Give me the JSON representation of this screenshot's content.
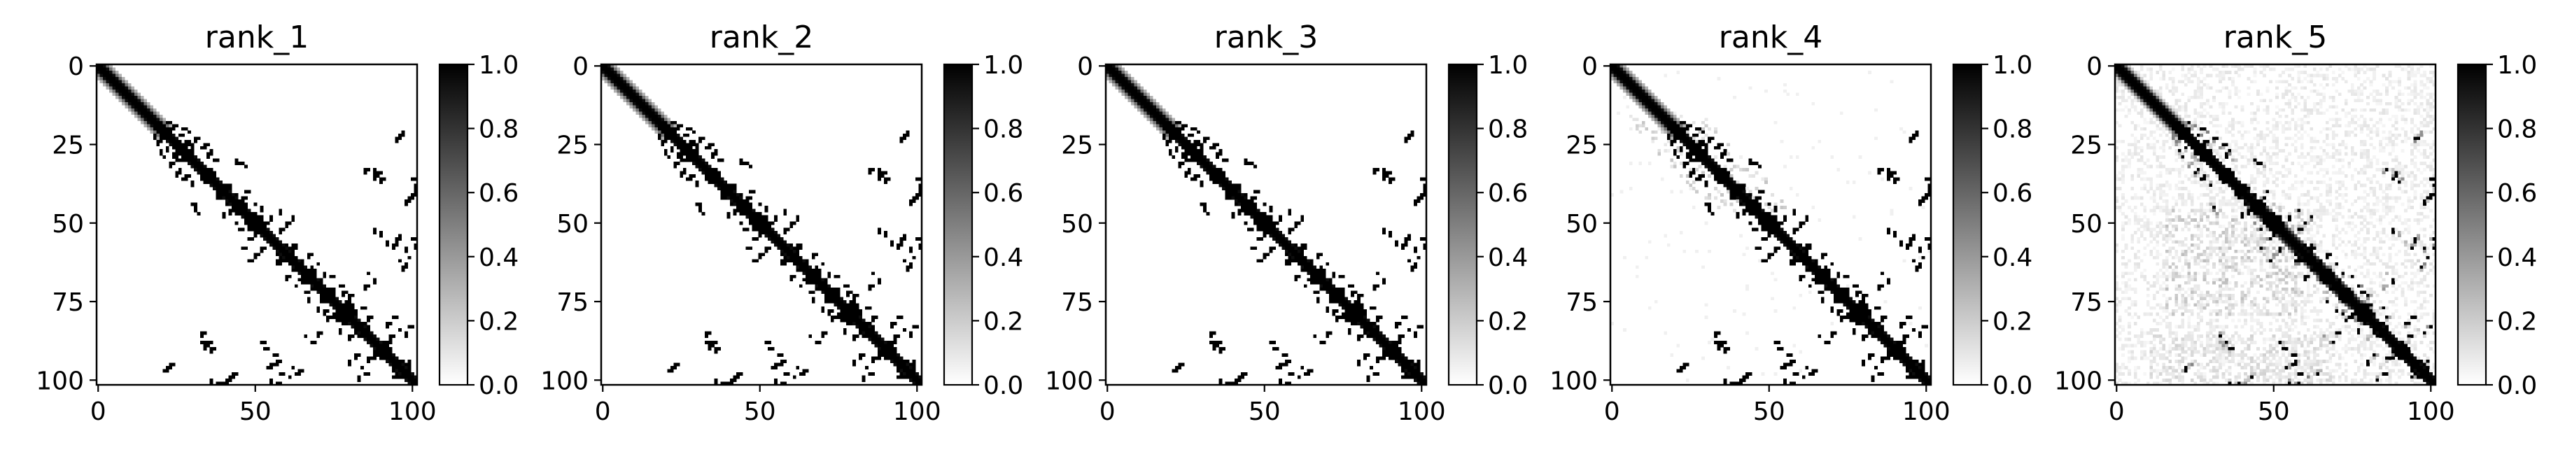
{
  "chart_data": [
    {
      "type": "heatmap",
      "title": "rank_1",
      "variant": 1,
      "xticks": [
        "0",
        "50",
        "100"
      ],
      "yticks": [
        "0",
        "25",
        "50",
        "75",
        "100"
      ],
      "colorbar_ticks": [
        "0.0",
        "0.2",
        "0.4",
        "0.6",
        "0.8",
        "1.0"
      ],
      "colormap": "gray_r",
      "value_range": [
        0,
        1
      ],
      "matrix_size": 102
    },
    {
      "type": "heatmap",
      "title": "rank_2",
      "variant": 2,
      "xticks": [
        "0",
        "50",
        "100"
      ],
      "yticks": [
        "0",
        "25",
        "50",
        "75",
        "100"
      ],
      "colorbar_ticks": [
        "0.0",
        "0.2",
        "0.4",
        "0.6",
        "0.8",
        "1.0"
      ],
      "colormap": "gray_r",
      "value_range": [
        0,
        1
      ],
      "matrix_size": 102
    },
    {
      "type": "heatmap",
      "title": "rank_3",
      "variant": 3,
      "xticks": [
        "0",
        "50",
        "100"
      ],
      "yticks": [
        "0",
        "25",
        "50",
        "75",
        "100"
      ],
      "colorbar_ticks": [
        "0.0",
        "0.2",
        "0.4",
        "0.6",
        "0.8",
        "1.0"
      ],
      "colormap": "gray_r",
      "value_range": [
        0,
        1
      ],
      "matrix_size": 102
    },
    {
      "type": "heatmap",
      "title": "rank_4",
      "variant": 4,
      "xticks": [
        "0",
        "50",
        "100"
      ],
      "yticks": [
        "0",
        "25",
        "50",
        "75",
        "100"
      ],
      "colorbar_ticks": [
        "0.0",
        "0.2",
        "0.4",
        "0.6",
        "0.8",
        "1.0"
      ],
      "colormap": "gray_r",
      "value_range": [
        0,
        1
      ],
      "matrix_size": 102
    },
    {
      "type": "heatmap",
      "title": "rank_5",
      "variant": 5,
      "xticks": [
        "0",
        "50",
        "100"
      ],
      "yticks": [
        "0",
        "25",
        "50",
        "75",
        "100"
      ],
      "colorbar_ticks": [
        "0.0",
        "0.2",
        "0.4",
        "0.6",
        "0.8",
        "1.0"
      ],
      "colormap": "gray_r",
      "value_range": [
        0,
        1
      ],
      "matrix_size": 102
    }
  ],
  "colors": {
    "high": "#000000",
    "low": "#ffffff",
    "axis": "#000000"
  }
}
